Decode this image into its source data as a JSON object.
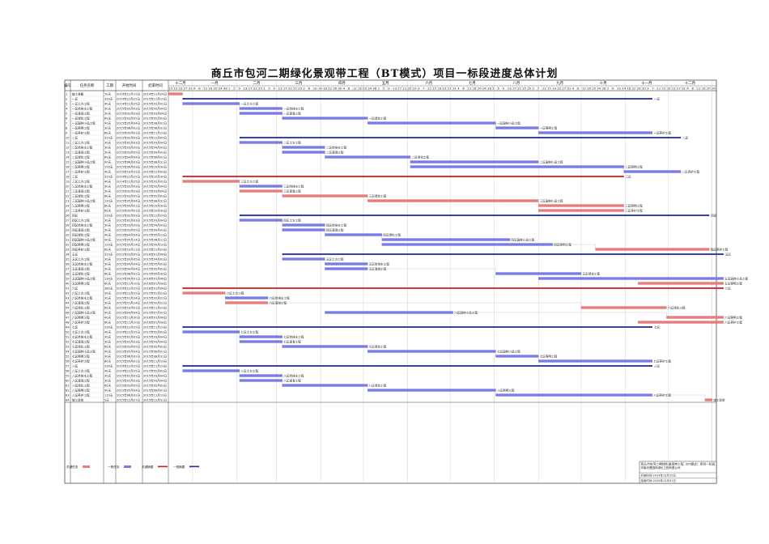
{
  "title": "商丘市包河二期绿化景观带工程（BT模式）项目一标段进度总体计划",
  "colors": {
    "summary": "#1f2fb3",
    "normal": "#7b7be6",
    "critical": "#e87c7c",
    "critical_summary": "#d81e1e",
    "text_red": "#d22222",
    "grid": "#c8c8c8",
    "frame": "#111111"
  },
  "headers": [
    "编号",
    "任务名称",
    "工期",
    "开始时间",
    "结束时间"
  ],
  "months": [
    "十二月",
    "一月",
    "二月",
    "三月",
    "四月",
    "五月",
    "六月",
    "七月",
    "八月",
    "九月",
    "十月",
    "十一月",
    "十二月",
    "一月"
  ],
  "days": [
    "15",
    "19",
    "23",
    "27",
    "31",
    "4",
    "8",
    "12",
    "16",
    "20",
    "24",
    "28",
    "1",
    "5",
    "9",
    "13",
    "17",
    "21",
    "25",
    "1",
    "5",
    "9",
    "13",
    "17",
    "21",
    "25",
    "29",
    "2",
    "6",
    "10",
    "14",
    "18",
    "22",
    "26",
    "30",
    "4",
    "8",
    "12",
    "16",
    "20",
    "24",
    "28",
    "1",
    "5",
    "9",
    "13",
    "17",
    "21",
    "25",
    "29",
    "3",
    "7",
    "11",
    "15",
    "19",
    "23",
    "27",
    "31",
    "4",
    "8",
    "12",
    "16",
    "20",
    "24",
    "28",
    "1",
    "5",
    "9",
    "13",
    "17",
    "21",
    "25",
    "29",
    "3",
    "7",
    "11",
    "15",
    "19",
    "23",
    "27",
    "31",
    "4",
    "8",
    "12",
    "16",
    "20",
    "24",
    "28",
    "2",
    "6",
    "10",
    "14",
    "18",
    "22",
    "26",
    "30",
    "3",
    "7",
    "11",
    "15",
    "19",
    "23",
    "27",
    "31",
    "4",
    "8",
    "12",
    "16",
    "20",
    "24",
    "28"
  ],
  "legend": [
    "关键任务",
    "一般任务",
    "关键摘要",
    "一般摘要"
  ],
  "legend_labels": [
    "关键任务",
    "一般任务",
    "关键摘要",
    "一般摘要"
  ],
  "info": {
    "project": "商丘市包河二期绿化景观带工程（BT模式）项目一标段",
    "company": "河南天晟园林绿化工程有限公司",
    "start": "开始时间 2014年12月15日",
    "end": "结束时间 2015年12月31日"
  },
  "chart_data": {
    "type": "gantt",
    "title": "商丘市包河二期绿化景观带工程（BT模式）项目一标段进度总体计划",
    "x_range": [
      "2014-12-15",
      "2016-01-03"
    ],
    "tasks": [
      {
        "id": "1",
        "name": "施工准备",
        "dur": "10天",
        "start": "2014年12月15日",
        "end": "2014年12月24日",
        "s": 0,
        "e": 10,
        "kind": "crit"
      },
      {
        "id": "2",
        "name": "一区",
        "dur": "330天",
        "start": "2014年12月25日",
        "end": "2015年11月19日",
        "s": 10,
        "e": 340,
        "kind": "sum"
      },
      {
        "id": "3",
        "name": "一区土方工程",
        "dur": "40天",
        "start": "2014年12月25日",
        "end": "2015年02月02日",
        "s": 10,
        "e": 50,
        "kind": "norm",
        "label": "一区土方工程"
      },
      {
        "id": "4",
        "name": "一区给排水工程",
        "dur": "30天",
        "start": "2015年02月03日",
        "end": "2015年03月04日",
        "s": 50,
        "e": 80,
        "kind": "norm",
        "label": "一区给排水工程"
      },
      {
        "id": "5",
        "name": "一区灌溉工程",
        "dur": "30天",
        "start": "2015年02月03日",
        "end": "2015年03月04日",
        "s": 50,
        "e": 80,
        "kind": "norm",
        "label": "一区灌溉工程"
      },
      {
        "id": "6",
        "name": "一区绿化工程",
        "dur": "60天",
        "start": "2015年03月05日",
        "end": "2015年05月03日",
        "s": 80,
        "e": 140,
        "kind": "norm",
        "label": "一区绿化工程"
      },
      {
        "id": "7",
        "name": "一区园林小品工程",
        "dur": "90天",
        "start": "2015年05月04日",
        "end": "2015年08月01日",
        "s": 140,
        "e": 230,
        "kind": "norm",
        "label": "一区园林小品工程"
      },
      {
        "id": "8",
        "name": "一区照明工程",
        "dur": "30天",
        "start": "2015年08月02日",
        "end": "2015年08月31日",
        "s": 230,
        "e": 260,
        "kind": "norm",
        "label": "一区照明工程"
      },
      {
        "id": "9",
        "name": "一区养护工程",
        "dur": "80天",
        "start": "2015年09月01日",
        "end": "2015年11月19日",
        "s": 260,
        "e": 340,
        "kind": "norm",
        "label": "一区养护工程"
      },
      {
        "id": "10",
        "name": "二区",
        "dur": "310天",
        "start": "2015年02月03日",
        "end": "2015年12月09日",
        "s": 50,
        "e": 360,
        "kind": "sum"
      },
      {
        "id": "11",
        "name": "二区土方工程",
        "dur": "30天",
        "start": "2015年02月03日",
        "end": "2015年03月04日",
        "s": 50,
        "e": 80,
        "kind": "norm",
        "label": "二区土方工程"
      },
      {
        "id": "12",
        "name": "二区给排水工程",
        "dur": "30天",
        "start": "2015年03月05日",
        "end": "2015年04月03日",
        "s": 80,
        "e": 110,
        "kind": "norm",
        "label": "二区给排水工程"
      },
      {
        "id": "13",
        "name": "二区灌溉工程",
        "dur": "30天",
        "start": "2015年03月05日",
        "end": "2015年04月03日",
        "s": 80,
        "e": 110,
        "kind": "norm",
        "label": "二区灌溉工程"
      },
      {
        "id": "14",
        "name": "二区绿化工程",
        "dur": "60天",
        "start": "2015年04月04日",
        "end": "2015年06月02日",
        "s": 110,
        "e": 170,
        "kind": "norm",
        "label": "二区绿化工程"
      },
      {
        "id": "15",
        "name": "二区园林小品工程",
        "dur": "90天",
        "start": "2015年06月03日",
        "end": "2015年08月31日",
        "s": 170,
        "e": 260,
        "kind": "norm",
        "label": "二区园林小品工程"
      },
      {
        "id": "16",
        "name": "二区照明工程",
        "dur": "150天",
        "start": "2015年06月03日",
        "end": "2015年10月30日",
        "s": 170,
        "e": 320,
        "kind": "norm",
        "label": "二区照明工程"
      },
      {
        "id": "17",
        "name": "二区养护工程",
        "dur": "40天",
        "start": "2015年10月31日",
        "end": "2015年12月09日",
        "s": 320,
        "e": 360,
        "kind": "norm",
        "label": "二区养护工程"
      },
      {
        "id": "18",
        "name": "三区",
        "dur": "310天",
        "start": "2014年12月25日",
        "end": "2015年10月30日",
        "s": 10,
        "e": 320,
        "kind": "csum"
      },
      {
        "id": "19",
        "name": "三区土方工程",
        "dur": "40天",
        "start": "2014年12月25日",
        "end": "2015年02月02日",
        "s": 10,
        "e": 50,
        "kind": "crit",
        "label": "三区土方工程"
      },
      {
        "id": "20",
        "name": "三区给排水工程",
        "dur": "30天",
        "start": "2015年02月03日",
        "end": "2015年03月04日",
        "s": 50,
        "e": 80,
        "kind": "norm",
        "label": "三区给排水工程"
      },
      {
        "id": "21",
        "name": "三区灌溉工程",
        "dur": "30天",
        "start": "2015年02月03日",
        "end": "2015年03月04日",
        "s": 50,
        "e": 80,
        "kind": "crit",
        "label": "三区灌溉工程"
      },
      {
        "id": "22",
        "name": "三区绿化工程",
        "dur": "60天",
        "start": "2015年03月05日",
        "end": "2015年05月03日",
        "s": 80,
        "e": 140,
        "kind": "crit",
        "label": "三区绿化工程"
      },
      {
        "id": "23",
        "name": "三区园林小品工程",
        "dur": "120天",
        "start": "2015年05月04日",
        "end": "2015年08月31日",
        "s": 140,
        "e": 260,
        "kind": "crit",
        "label": "三区园林小品工程"
      },
      {
        "id": "24",
        "name": "三区照明工程",
        "dur": "60天",
        "start": "2015年09月01日",
        "end": "2015年10月30日",
        "s": 260,
        "e": 320,
        "kind": "crit",
        "label": "三区照明工程"
      },
      {
        "id": "25",
        "name": "三区养护工程",
        "dur": "60天",
        "start": "2015年09月01日",
        "end": "2015年10月30日",
        "s": 260,
        "e": 320,
        "kind": "crit",
        "label": "三区养护工程"
      },
      {
        "id": "26",
        "name": "四区",
        "dur": "330天",
        "start": "2015年02月03日",
        "end": "2015年12月29日",
        "s": 50,
        "e": 380,
        "kind": "sum"
      },
      {
        "id": "27",
        "name": "四区土方工程",
        "dur": "30天",
        "start": "2015年02月03日",
        "end": "2015年03月04日",
        "s": 50,
        "e": 80,
        "kind": "norm",
        "label": "四区土方工程"
      },
      {
        "id": "28",
        "name": "四区给排水工程",
        "dur": "30天",
        "start": "2015年03月05日",
        "end": "2015年04月03日",
        "s": 80,
        "e": 110,
        "kind": "norm",
        "label": "四区给排水工程"
      },
      {
        "id": "29",
        "name": "四区灌溉工程",
        "dur": "30天",
        "start": "2015年03月05日",
        "end": "2015年04月03日",
        "s": 80,
        "e": 110,
        "kind": "norm",
        "label": "四区灌溉工程"
      },
      {
        "id": "30",
        "name": "四区绿化工程",
        "dur": "40天",
        "start": "2015年04月04日",
        "end": "2015年05月13日",
        "s": 110,
        "e": 150,
        "kind": "norm",
        "label": "四区绿化工程"
      },
      {
        "id": "31",
        "name": "四区园林小品工程",
        "dur": "90天",
        "start": "2015年05月14日",
        "end": "2015年08月11日",
        "s": 150,
        "e": 240,
        "kind": "norm",
        "label": "四区园林小品工程"
      },
      {
        "id": "32",
        "name": "四区照明工程",
        "dur": "120天",
        "start": "2015年05月14日",
        "end": "2015年09月10日",
        "s": 150,
        "e": 270,
        "kind": "norm",
        "label": "四区照明工程"
      },
      {
        "id": "33",
        "name": "四区养护工程",
        "dur": "80天",
        "start": "2015年10月11日",
        "end": "2015年12月29日",
        "s": 300,
        "e": 380,
        "kind": "crit",
        "label": "四区养护工程"
      },
      {
        "id": "34",
        "name": "五区",
        "dur": "310天",
        "start": "2015年03月05日",
        "end": "2016年01月08日",
        "s": 80,
        "e": 390,
        "kind": "sum"
      },
      {
        "id": "35",
        "name": "五区土方工程",
        "dur": "30天",
        "start": "2015年03月05日",
        "end": "2015年04月03日",
        "s": 80,
        "e": 110,
        "kind": "norm",
        "label": "五区土方工程"
      },
      {
        "id": "36",
        "name": "五区给排水工程",
        "dur": "30天",
        "start": "2015年04月04日",
        "end": "2015年05月03日",
        "s": 110,
        "e": 140,
        "kind": "norm",
        "label": "五区给排水工程"
      },
      {
        "id": "37",
        "name": "五区灌溉工程",
        "dur": "30天",
        "start": "2015年04月04日",
        "end": "2015年05月03日",
        "s": 110,
        "e": 140,
        "kind": "norm",
        "label": "五区灌溉工程"
      },
      {
        "id": "38",
        "name": "五区绿化工程",
        "dur": "60天",
        "start": "2015年08月02日",
        "end": "2015年09月30日",
        "s": 230,
        "e": 290,
        "kind": "norm",
        "label": "五区绿化工程"
      },
      {
        "id": "39",
        "name": "五区园林小品工程",
        "dur": "130天",
        "start": "2015年09月01日",
        "end": "2016年01月08日",
        "s": 260,
        "e": 390,
        "kind": "norm",
        "label": "五区园林小品工程"
      },
      {
        "id": "40",
        "name": "五区照明工程",
        "dur": "60天",
        "start": "2015年11月10日",
        "end": "2016年01月08日",
        "s": 330,
        "e": 390,
        "kind": "crit",
        "label": "五区照明工程"
      },
      {
        "id": "41",
        "name": "六区",
        "dur": "380天",
        "start": "2014年12月25日",
        "end": "2016年01月08日",
        "s": 10,
        "e": 390,
        "kind": "csum"
      },
      {
        "id": "42",
        "name": "六区土方工程",
        "dur": "30天",
        "start": "2014年12月25日",
        "end": "2015年01月23日",
        "s": 10,
        "e": 40,
        "kind": "crit",
        "label": "六区土方工程"
      },
      {
        "id": "43",
        "name": "六区给排水工程",
        "dur": "30天",
        "start": "2015年01月24日",
        "end": "2015年02月22日",
        "s": 40,
        "e": 70,
        "kind": "norm",
        "label": "六区给排水工程"
      },
      {
        "id": "44",
        "name": "六区灌溉工程",
        "dur": "30天",
        "start": "2015年01月24日",
        "end": "2015年02月22日",
        "s": 40,
        "e": 70,
        "kind": "crit",
        "label": "六区灌溉工程"
      },
      {
        "id": "45",
        "name": "六区绿化工程",
        "dur": "60天",
        "start": "2015年10月01日",
        "end": "2015年11月29日",
        "s": 290,
        "e": 350,
        "kind": "crit",
        "label": "六区绿化工程"
      },
      {
        "id": "46",
        "name": "六区园林小品工程",
        "dur": "90天",
        "start": "2015年04月04日",
        "end": "2015年07月02日",
        "s": 110,
        "e": 200,
        "kind": "norm",
        "label": "六区园林小品工程"
      },
      {
        "id": "47",
        "name": "六区照明工程",
        "dur": "40天",
        "start": "2015年11月30日",
        "end": "2016年01月08日",
        "s": 350,
        "e": 390,
        "kind": "crit",
        "label": "六区照明工程"
      },
      {
        "id": "48",
        "name": "六区养护工程",
        "dur": "60天",
        "start": "2015年11月10日",
        "end": "2016年01月08日",
        "s": 330,
        "e": 390,
        "kind": "crit",
        "label": "六区养护工程"
      },
      {
        "id": "49",
        "name": "七区",
        "dur": "330天",
        "start": "2014年12月25日",
        "end": "2015年11月19日",
        "s": 10,
        "e": 340,
        "kind": "sum"
      },
      {
        "id": "50",
        "name": "七区土方工程",
        "dur": "40天",
        "start": "2014年12月25日",
        "end": "2015年02月02日",
        "s": 10,
        "e": 50,
        "kind": "norm",
        "label": "七区土方工程"
      },
      {
        "id": "51",
        "name": "七区给排水工程",
        "dur": "30天",
        "start": "2015年02月03日",
        "end": "2015年03月04日",
        "s": 50,
        "e": 80,
        "kind": "norm",
        "label": "七区给排水工程"
      },
      {
        "id": "52",
        "name": "七区灌溉工程",
        "dur": "30天",
        "start": "2015年02月03日",
        "end": "2015年03月04日",
        "s": 50,
        "e": 80,
        "kind": "norm",
        "label": "七区灌溉工程"
      },
      {
        "id": "53",
        "name": "七区绿化工程",
        "dur": "60天",
        "start": "2015年03月05日",
        "end": "2015年05月03日",
        "s": 80,
        "e": 140,
        "kind": "norm",
        "label": "七区绿化工程"
      },
      {
        "id": "54",
        "name": "七区园林小品工程",
        "dur": "90天",
        "start": "2015年05月04日",
        "end": "2015年08月01日",
        "s": 140,
        "e": 230,
        "kind": "norm",
        "label": "七区园林小品工程"
      },
      {
        "id": "55",
        "name": "七区照明工程",
        "dur": "30天",
        "start": "2015年08月02日",
        "end": "2015年08月31日",
        "s": 230,
        "e": 260,
        "kind": "norm",
        "label": "七区照明工程"
      },
      {
        "id": "56",
        "name": "七区养护工程",
        "dur": "80天",
        "start": "2015年09月01日",
        "end": "2015年11月19日",
        "s": 260,
        "e": 340,
        "kind": "norm",
        "label": "七区养护工程"
      },
      {
        "id": "57",
        "name": "八区",
        "dur": "330天",
        "start": "2014年12月25日",
        "end": "2015年11月19日",
        "s": 10,
        "e": 340,
        "kind": "sum"
      },
      {
        "id": "58",
        "name": "八区土方工程",
        "dur": "40天",
        "start": "2014年12月25日",
        "end": "2015年02月02日",
        "s": 10,
        "e": 50,
        "kind": "norm",
        "label": "八区土方工程"
      },
      {
        "id": "59",
        "name": "八区给排水工程",
        "dur": "30天",
        "start": "2015年02月03日",
        "end": "2015年03月04日",
        "s": 50,
        "e": 80,
        "kind": "norm",
        "label": "八区给排水工程"
      },
      {
        "id": "60",
        "name": "八区灌溉工程",
        "dur": "30天",
        "start": "2015年02月03日",
        "end": "2015年03月04日",
        "s": 50,
        "e": 80,
        "kind": "norm",
        "label": "八区灌溉工程"
      },
      {
        "id": "61",
        "name": "八区绿化工程",
        "dur": "60天",
        "start": "2015年03月05日",
        "end": "2015年05月03日",
        "s": 80,
        "e": 140,
        "kind": "norm",
        "label": "八区绿化工程"
      },
      {
        "id": "62",
        "name": "八区照明工程",
        "dur": "90天",
        "start": "2015年05月04日",
        "end": "2015年08月01日",
        "s": 140,
        "e": 230,
        "kind": "norm",
        "label": "八区照明工程"
      },
      {
        "id": "63",
        "name": "八区养护工程",
        "dur": "110天",
        "start": "2015年08月02日",
        "end": "2015年11月19日",
        "s": 230,
        "e": 340,
        "kind": "norm",
        "label": "八区养护工程"
      },
      {
        "id": "64",
        "name": "竣工验收",
        "dur": "5天",
        "start": "2015年12月27日",
        "end": "2015年12月31日",
        "s": 377,
        "e": 382,
        "kind": "crit",
        "label": "竣工验收"
      }
    ]
  }
}
